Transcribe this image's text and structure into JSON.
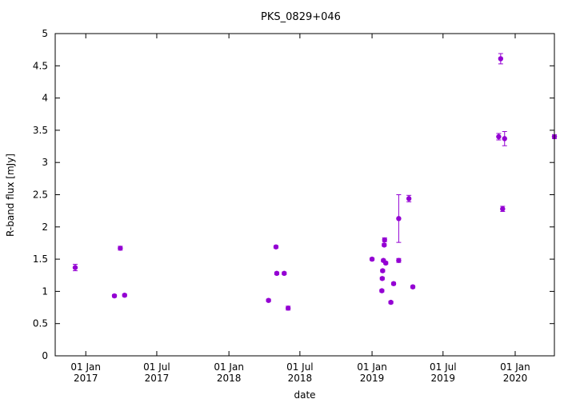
{
  "chart_data": {
    "type": "scatter",
    "title": "PKS_0829+046",
    "xlabel": "date",
    "ylabel": "R-band flux [mJy]",
    "x_scale": "date",
    "xlim": [
      "2016-10-15",
      "2020-04-10"
    ],
    "ylim": [
      0,
      5
    ],
    "y_ticks": [
      0,
      0.5,
      1,
      1.5,
      2,
      2.5,
      3,
      3.5,
      4,
      4.5,
      5
    ],
    "y_tick_labels": [
      "0",
      "0.5",
      "1",
      "1.5",
      "2",
      "2.5",
      "3",
      "3.5",
      "4",
      "4.5",
      "5"
    ],
    "x_ticks": [
      {
        "date": "2017-01-01",
        "line1": "01 Jan",
        "line2": "2017"
      },
      {
        "date": "2017-07-01",
        "line1": "01 Jul",
        "line2": "2017"
      },
      {
        "date": "2018-01-01",
        "line1": "01 Jan",
        "line2": "2018"
      },
      {
        "date": "2018-07-01",
        "line1": "01 Jul",
        "line2": "2018"
      },
      {
        "date": "2019-01-01",
        "line1": "01 Jan",
        "line2": "2019"
      },
      {
        "date": "2019-07-01",
        "line1": "01 Jul",
        "line2": "2019"
      },
      {
        "date": "2020-01-01",
        "line1": "01 Jan",
        "line2": "2020"
      }
    ],
    "grid": false,
    "legend": "none",
    "marker_color": "#9400d3",
    "series": [
      {
        "points": [
          {
            "x": "2016-12-05",
            "y": 1.37,
            "err": 0.05
          },
          {
            "x": "2017-03-15",
            "y": 0.93,
            "err": 0.02
          },
          {
            "x": "2017-03-30",
            "y": 1.67,
            "err": 0.03
          },
          {
            "x": "2017-04-10",
            "y": 0.94,
            "err": 0.02
          },
          {
            "x": "2018-04-12",
            "y": 0.86,
            "err": 0.02
          },
          {
            "x": "2018-05-01",
            "y": 1.69,
            "err": 0.02
          },
          {
            "x": "2018-05-03",
            "y": 1.28,
            "err": 0.02
          },
          {
            "x": "2018-05-22",
            "y": 1.28,
            "err": 0.02
          },
          {
            "x": "2018-06-01",
            "y": 0.74,
            "err": 0.03
          },
          {
            "x": "2019-01-01",
            "y": 1.5,
            "err": 0.02
          },
          {
            "x": "2019-01-26",
            "y": 1.01,
            "err": 0.02
          },
          {
            "x": "2019-01-27",
            "y": 1.2,
            "err": 0.02
          },
          {
            "x": "2019-01-28",
            "y": 1.32,
            "err": 0.02
          },
          {
            "x": "2019-01-30",
            "y": 1.48,
            "err": 0.02
          },
          {
            "x": "2019-02-01",
            "y": 1.72,
            "err": 0.02
          },
          {
            "x": "2019-02-02",
            "y": 1.8,
            "err": 0.03
          },
          {
            "x": "2019-02-05",
            "y": 1.44,
            "err": 0.02
          },
          {
            "x": "2019-02-18",
            "y": 0.83,
            "err": 0.02
          },
          {
            "x": "2019-02-25",
            "y": 1.12,
            "err": 0.02
          },
          {
            "x": "2019-03-10",
            "y": 1.48,
            "err": 0.03
          },
          {
            "x": "2019-03-10",
            "y": 2.13,
            "err": 0.37
          },
          {
            "x": "2019-04-05",
            "y": 2.44,
            "err": 0.05
          },
          {
            "x": "2019-04-15",
            "y": 1.07,
            "err": 0.02
          },
          {
            "x": "2019-11-20",
            "y": 3.4,
            "err": 0.05
          },
          {
            "x": "2019-11-25",
            "y": 4.61,
            "err": 0.08
          },
          {
            "x": "2019-11-30",
            "y": 2.28,
            "err": 0.04
          },
          {
            "x": "2019-12-05",
            "y": 3.37,
            "err": 0.11
          },
          {
            "x": "2020-04-10",
            "y": 3.4,
            "err": 0.03
          }
        ]
      }
    ]
  }
}
